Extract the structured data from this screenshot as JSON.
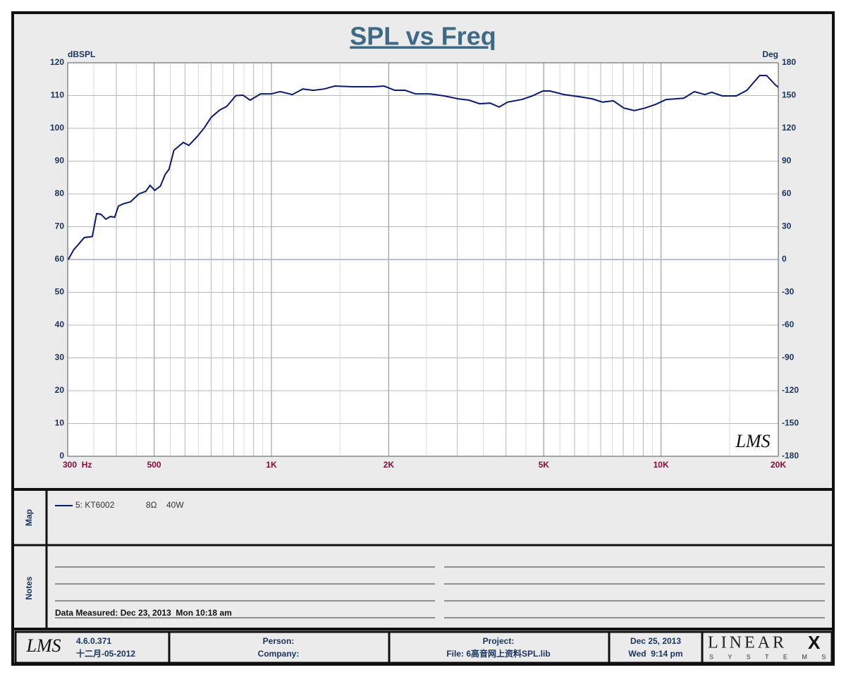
{
  "chart_data": {
    "type": "line",
    "title": "SPL vs Freq",
    "ylabel": "dBSPL",
    "y2label": "Deg",
    "log_x": true,
    "grid": true,
    "xlim": [
      300,
      20000
    ],
    "xticks": [
      {
        "value": 300,
        "label": "300  Hz"
      },
      500,
      {
        "value": 1000,
        "label": "1K"
      },
      {
        "value": 2000,
        "label": "2K"
      },
      {
        "value": 5000,
        "label": "5K"
      },
      {
        "value": 10000,
        "label": "10K"
      },
      {
        "value": 20000,
        "label": "20K"
      }
    ],
    "ylim": [
      0,
      120
    ],
    "yticks": [
      0,
      10,
      20,
      30,
      40,
      50,
      60,
      70,
      80,
      90,
      100,
      110,
      120
    ],
    "y2lim": [
      -180,
      180
    ],
    "y2ticks": [
      -180,
      -150,
      -120,
      -90,
      -60,
      -30,
      0,
      30,
      60,
      90,
      120,
      150,
      180
    ],
    "series": [
      {
        "name": "5: KT6002",
        "color": "#0a1a6e",
        "x": [
          301,
          311,
          331,
          347,
          356,
          365,
          376,
          386,
          396,
          405,
          417,
          435,
          457,
          476,
          488,
          502,
          519,
          534,
          546,
          562,
          594,
          614,
          646,
          673,
          701,
          737,
          768,
          811,
          846,
          882,
          938,
          998,
          1053,
          1131,
          1204,
          1281,
          1365,
          1455,
          1614,
          1830,
          1946,
          2073,
          2203,
          2344,
          2552,
          2777,
          3015,
          3215,
          3422,
          3642,
          3841,
          4040,
          4393,
          4676,
          4977,
          5187,
          5637,
          6125,
          6655,
          7085,
          7542,
          8027,
          8544,
          9096,
          9682,
          10306,
          11437,
          12175,
          12959,
          13490,
          14360,
          15602,
          16610,
          17912,
          18670,
          19636,
          20000
        ],
        "values": [
          60,
          63,
          66.7,
          67,
          74,
          73.8,
          72.3,
          73.1,
          72.9,
          76.3,
          77,
          77.6,
          80,
          80.8,
          82.6,
          81.1,
          82.4,
          86,
          87.5,
          93.3,
          95.7,
          94.8,
          97.6,
          100.2,
          103.4,
          105.6,
          106.7,
          110,
          110.1,
          108.6,
          110.5,
          110.5,
          111.2,
          110.3,
          112,
          111.6,
          112,
          112.9,
          112.7,
          112.7,
          112.9,
          111.6,
          111.6,
          110.5,
          110.5,
          109.9,
          109,
          108.6,
          107.5,
          107.7,
          106.5,
          108,
          108.8,
          109.9,
          111.4,
          111.4,
          110.3,
          109.7,
          109,
          108,
          108.4,
          106.2,
          105.4,
          106.2,
          107.3,
          108.8,
          109.2,
          111.2,
          110.3,
          111,
          109.9,
          109.9,
          111.6,
          116.1,
          116.1,
          113.3,
          112.5
        ]
      },
      {
        "color": "#a8a8d8",
        "axis": "y2",
        "x": [
          300,
          20000
        ],
        "values": [
          0,
          0
        ]
      }
    ],
    "legend_details": [
      "8Ω",
      "40W"
    ],
    "watermark": "LMS"
  },
  "panels": {
    "map": "Map",
    "notes": "Notes",
    "measured": "Data Measured: Dec 23, 2013  Mon 10:18 am"
  },
  "footer": {
    "logo": "LMS",
    "version": "4.6.0.371",
    "version_date": "十二月-05-2012",
    "person": "Person:",
    "company": "Company:",
    "project": "Project:",
    "file": "File: 6高音网上资料SPL.lib",
    "date": "Dec 25, 2013",
    "time": "Wed  9:14 pm",
    "brand": "LINEAR",
    "brand_x": "X",
    "brand_sub": "S Y S T E M S"
  }
}
